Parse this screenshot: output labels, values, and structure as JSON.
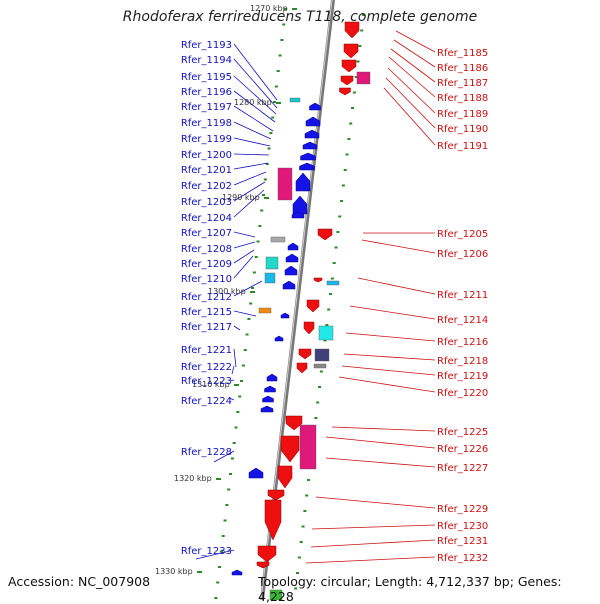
{
  "title": "Rhodoferax ferrireducens T118, complete genome",
  "accession": "Accession: NC_007908",
  "topology": "Topology: circular; Length: 4,712,337 bp; Genes: 4,228",
  "colors": {
    "left_label": "#1010c0",
    "right_label": "#cc1010",
    "blue_gene": "#1414e6",
    "red_gene": "#ee1010",
    "tick": "#2a8a2a",
    "backbone": "#777777"
  },
  "kbp_ticks": [
    "1270 kbp",
    "1280 kbp",
    "1290 kbp",
    "1300 kbp",
    "1310 kbp",
    "1320 kbp",
    "1330 kbp"
  ],
  "left_labels": [
    "Rfer_1193",
    "Rfer_1194",
    "Rfer_1195",
    "Rfer_1196",
    "Rfer_1197",
    "Rfer_1198",
    "Rfer_1199",
    "Rfer_1200",
    "Rfer_1201",
    "Rfer_1202",
    "Rfer_1203",
    "Rfer_1204",
    "Rfer_1207",
    "Rfer_1208",
    "Rfer_1209",
    "Rfer_1210",
    "Rfer_1212",
    "Rfer_1215",
    "Rfer_1217",
    "Rfer_1221",
    "Rfer_1222",
    "Rfer_1223",
    "Rfer_1224",
    "Rfer_1228",
    "Rfer_1233"
  ],
  "right_labels": [
    "Rfer_1185",
    "Rfer_1186",
    "Rfer_1187",
    "Rfer_1188",
    "Rfer_1189",
    "Rfer_1190",
    "Rfer_1191",
    "Rfer_1205",
    "Rfer_1206",
    "Rfer_1211",
    "Rfer_1214",
    "Rfer_1216",
    "Rfer_1218",
    "Rfer_1219",
    "Rfer_1220",
    "Rfer_1225",
    "Rfer_1226",
    "Rfer_1227",
    "Rfer_1229",
    "Rfer_1230",
    "Rfer_1231",
    "Rfer_1232"
  ]
}
